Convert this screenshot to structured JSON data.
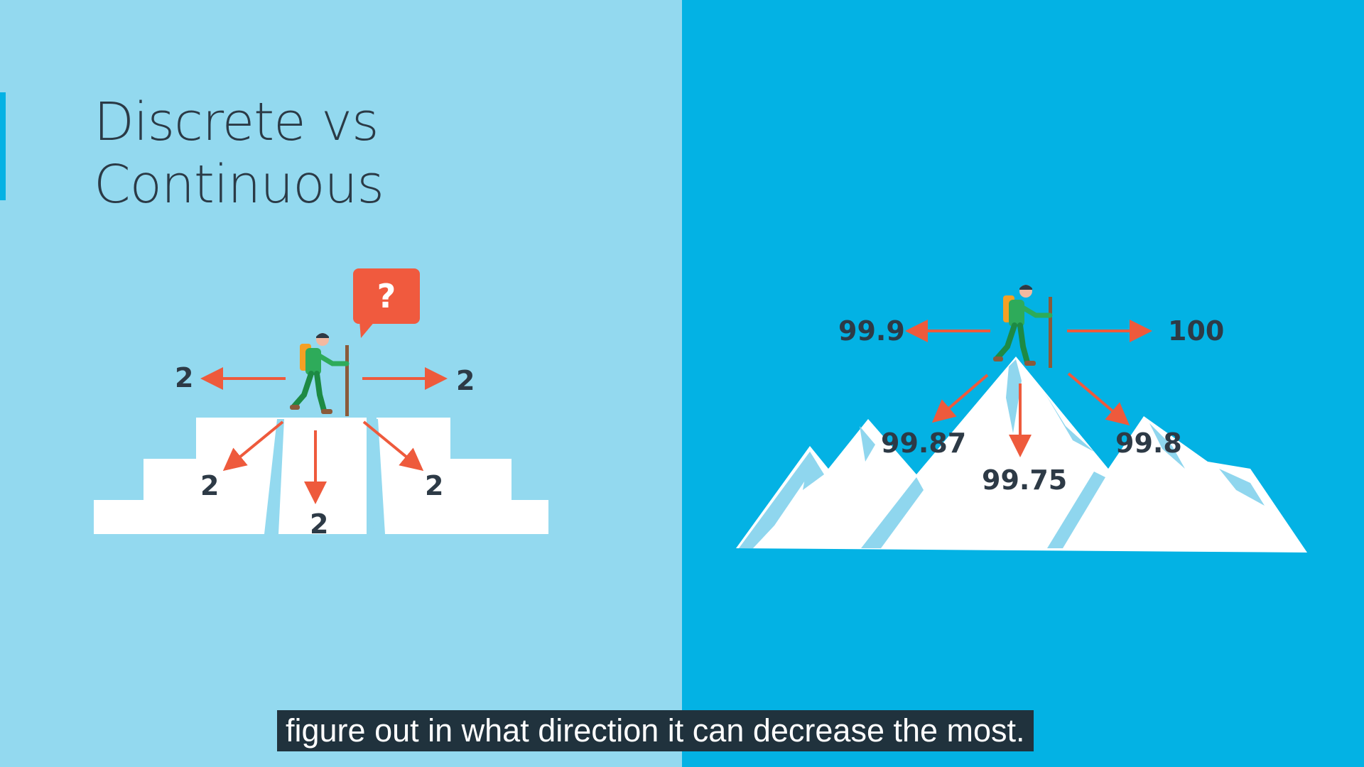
{
  "title": {
    "line1": "Discrete vs",
    "line2": "Continuous"
  },
  "left": {
    "question_mark": "?",
    "labels": {
      "left": "2",
      "right": "2",
      "down_left": "2",
      "down": "2",
      "down_right": "2"
    }
  },
  "right": {
    "labels": {
      "left": "99.9",
      "right": "100",
      "down_left": "99.87",
      "down": "99.75",
      "down_right": "99.8"
    }
  },
  "caption": "figure out in what direction it can decrease the most.",
  "colors": {
    "left_bg": "#93d9ef",
    "right_bg": "#03b2e4",
    "arrow": "#ee5a3c",
    "text": "#2d3a46",
    "speech_bubble": "#f05a3e"
  }
}
